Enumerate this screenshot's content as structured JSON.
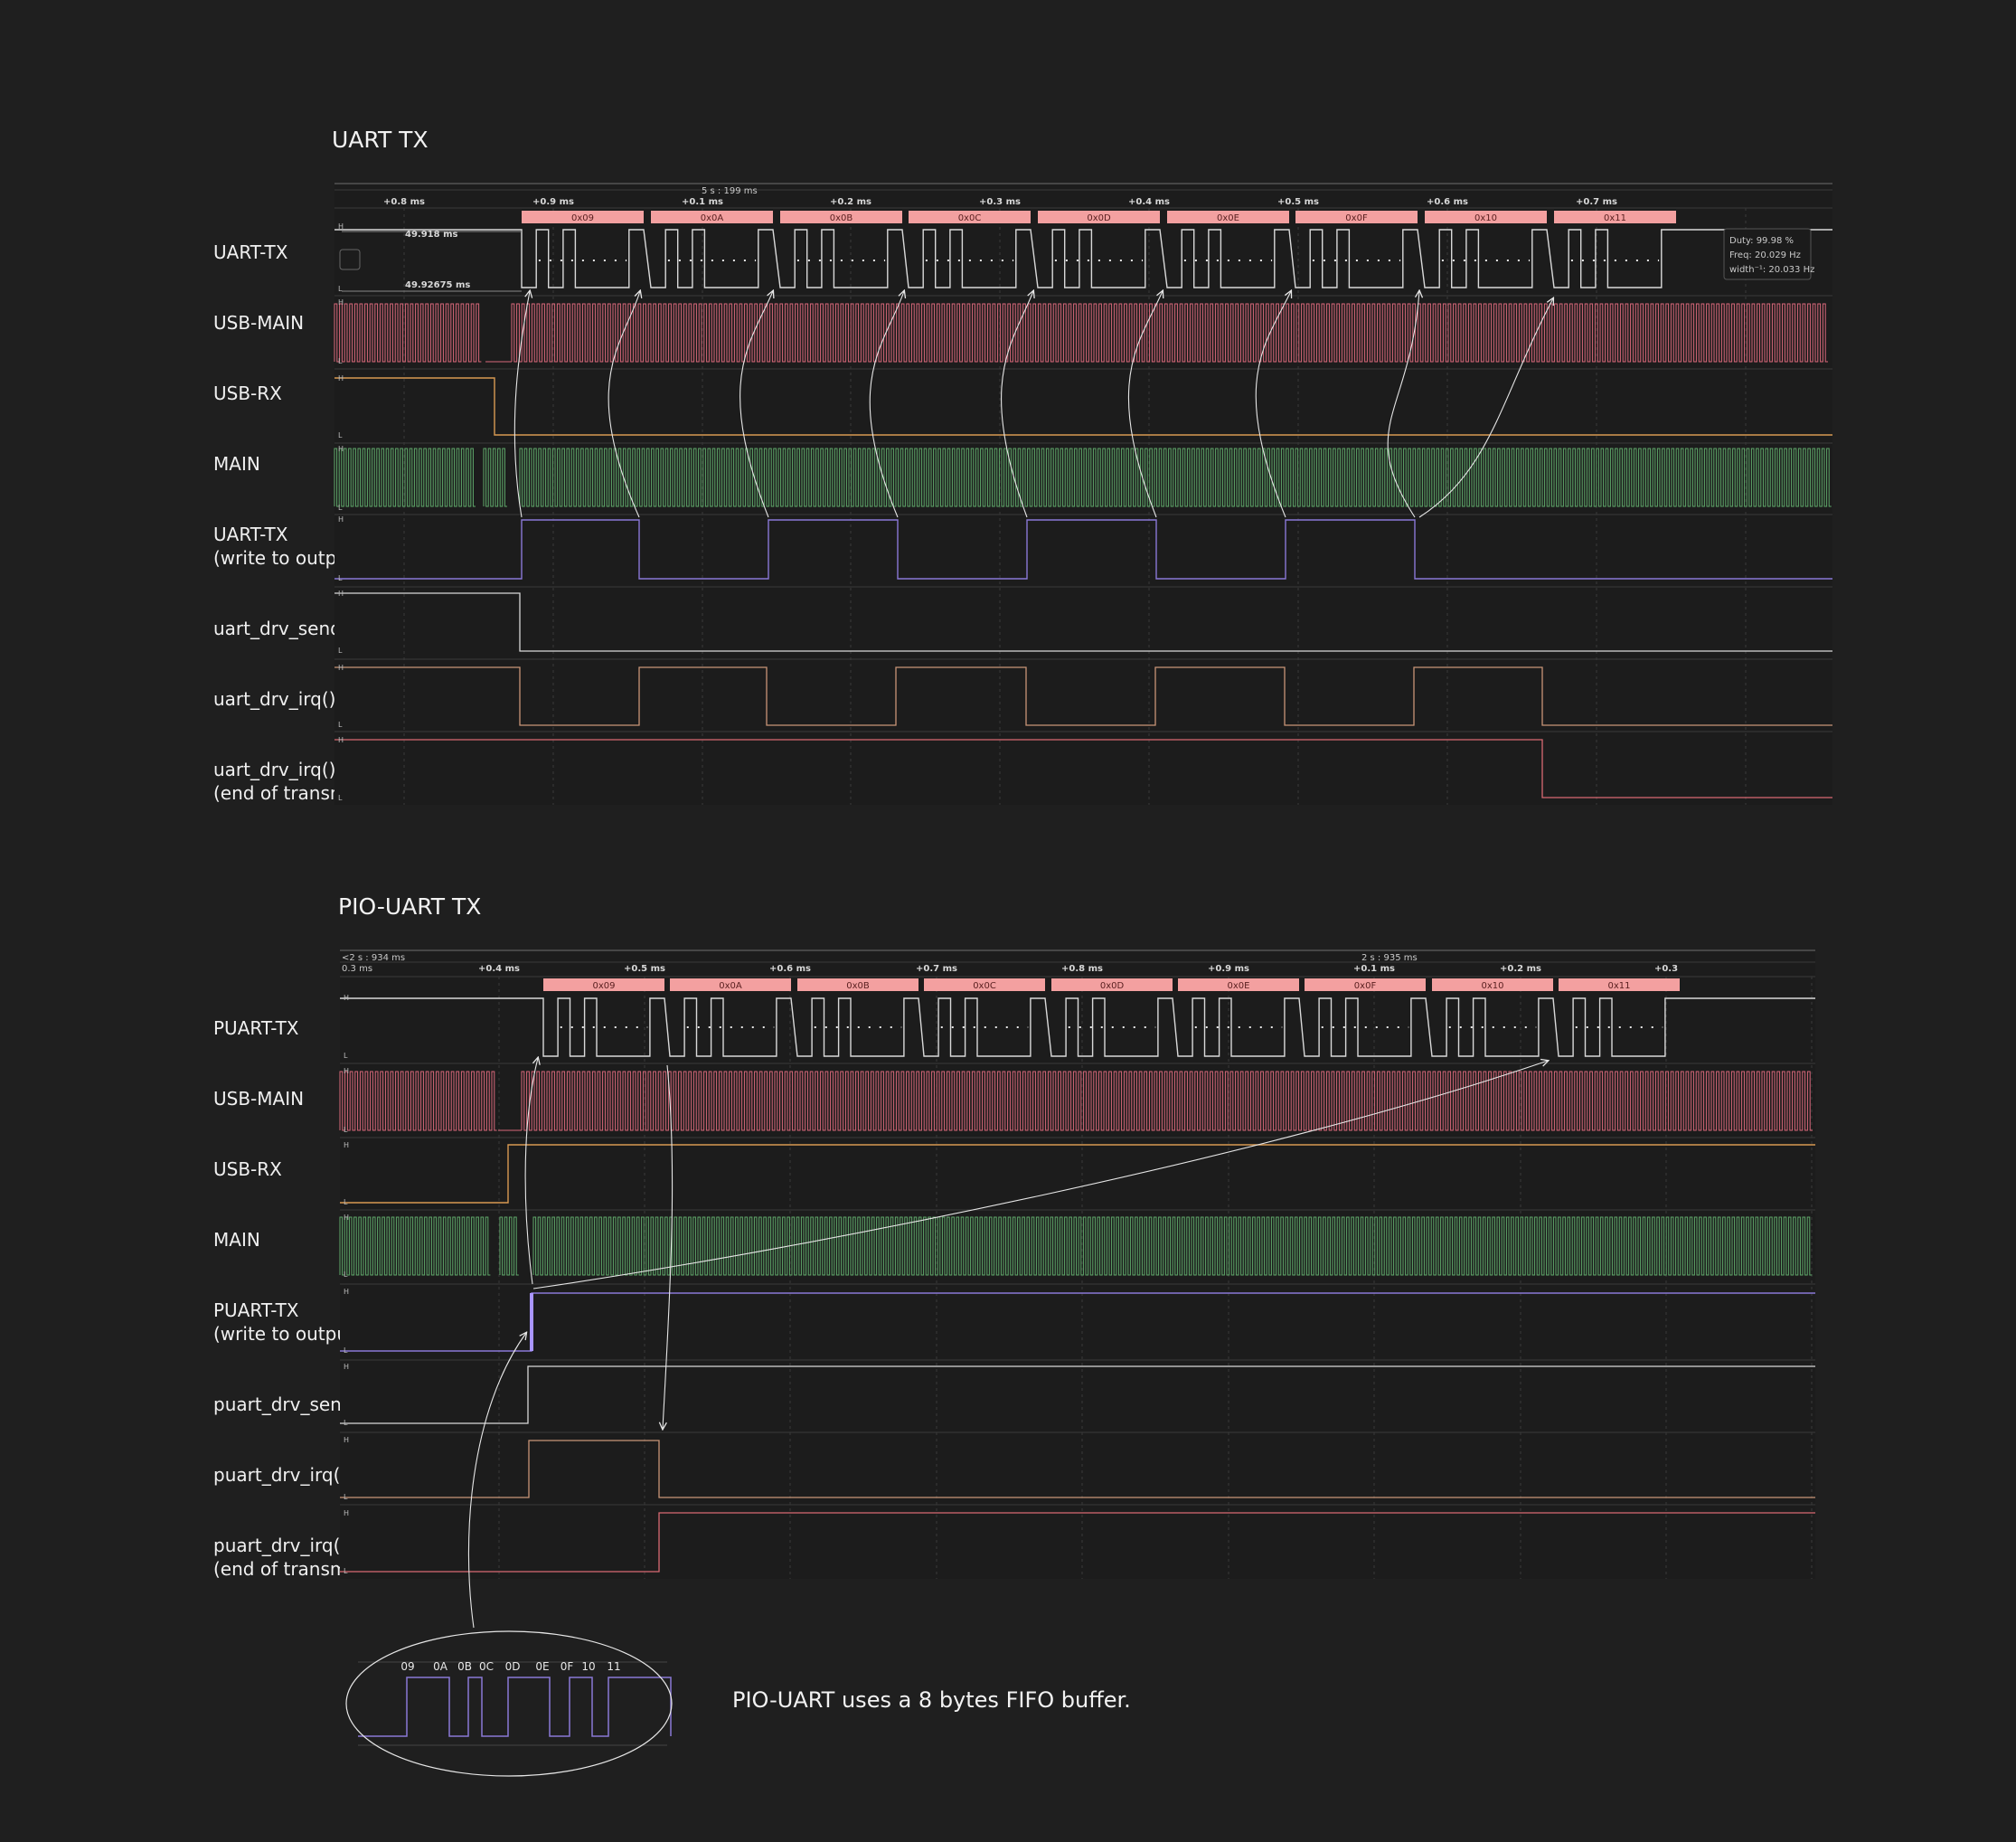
{
  "colors": {
    "background": "#1f1f1f",
    "uart_tx": "#d9d9d9",
    "usb_main": "#d9687a",
    "usb_rx": "#d89a52",
    "main": "#5fa86a",
    "write_reg": "#8a78d6",
    "send_buff": "#d8d8d8",
    "irq": "#c99577",
    "end_tx": "#d86a72",
    "byte_box": "#f3a0a0"
  },
  "top": {
    "title": "UART TX",
    "timestamp": "5 s : 199 ms",
    "ticks": [
      "+0.8 ms",
      "+0.9 ms",
      "+0.1 ms",
      "+0.2 ms",
      "+0.3 ms",
      "+0.4 ms",
      "+0.5 ms",
      "+0.6 ms",
      "+0.7 ms"
    ],
    "bytes": [
      "0x09",
      "0x0A",
      "0x0B",
      "0x0C",
      "0x0D",
      "0x0E",
      "0x0F",
      "0x10",
      "0x11"
    ],
    "cursor_a": "49.918 ms",
    "cursor_b": "49.92675 ms",
    "measure": {
      "duty": "Duty: 99.98 %",
      "freq": "Freq: 20.029 Hz",
      "width": "width⁻¹: 20.033 Hz"
    },
    "signals": [
      {
        "label": "UART-TX"
      },
      {
        "label": "USB-MAIN"
      },
      {
        "label": "USB-RX"
      },
      {
        "label": "MAIN"
      },
      {
        "label": "UART-TX",
        "sub": "(write to output reg)"
      },
      {
        "label": "uart_drv_send_buff"
      },
      {
        "label": "uart_drv_irq()"
      },
      {
        "label": "uart_drv_irq()",
        "sub": "(end of transmission)"
      }
    ]
  },
  "bottom": {
    "title": "PIO-UART TX",
    "timestamp_left": "<2 s : 934 ms",
    "timestamp_left_sub": "0.3 ms",
    "timestamp": "2 s : 935 ms",
    "ticks": [
      "+0.4 ms",
      "+0.5 ms",
      "+0.6 ms",
      "+0.7 ms",
      "+0.8 ms",
      "+0.9 ms",
      "+0.1 ms",
      "+0.2 ms",
      "+0.3"
    ],
    "bytes": [
      "0x09",
      "0x0A",
      "0x0B",
      "0x0C",
      "0x0D",
      "0x0E",
      "0x0F",
      "0x10",
      "0x11"
    ],
    "signals": [
      {
        "label": "PUART-TX"
      },
      {
        "label": "USB-MAIN"
      },
      {
        "label": "USB-RX"
      },
      {
        "label": "MAIN"
      },
      {
        "label": "PUART-TX",
        "sub": "(write to output reg)"
      },
      {
        "label": "puart_drv_send_buff"
      },
      {
        "label": "puart_drv_irq()"
      },
      {
        "label": "puart_drv_irq()",
        "sub": "(end of transmission)"
      }
    ]
  },
  "bubble": {
    "bytes": [
      "09",
      "0A",
      "0B",
      "0C",
      "0D",
      "0E",
      "0F",
      "10",
      "11"
    ],
    "note": "PIO-UART uses a 8 bytes FIFO buffer."
  },
  "level_high": "H",
  "level_low": "L"
}
